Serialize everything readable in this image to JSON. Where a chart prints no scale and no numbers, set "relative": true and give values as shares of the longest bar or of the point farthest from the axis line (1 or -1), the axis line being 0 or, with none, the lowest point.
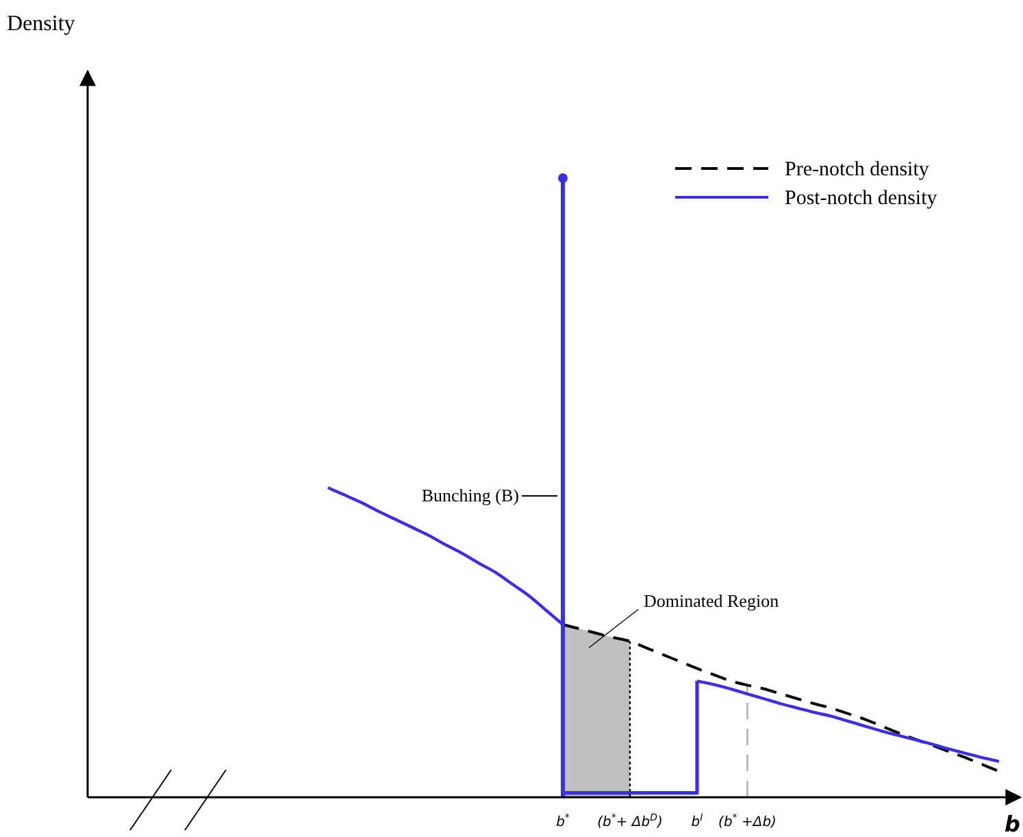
{
  "chart_data": {
    "type": "line",
    "relative": true,
    "xlabel": "b",
    "categories": [
      null,
      null,
      null,
      null,
      null,
      null,
      null,
      null,
      null,
      null,
      null,
      null,
      null,
      null,
      null,
      null,
      null,
      null,
      null,
      null,
      null,
      null,
      null,
      null,
      null,
      null,
      null,
      null,
      "b$^{*}$",
      null,
      null,
      null,
      "(b$^{*}$+ Δb$^{D}$)",
      null,
      null,
      null,
      "b$^{I}$",
      null,
      null,
      "(b$^{*}$ +Δb)",
      null,
      null,
      null,
      null,
      null,
      null,
      null,
      null,
      null,
      null,
      null,
      null,
      null,
      null,
      null
    ],
    "legend": "top right",
    "series": [
      {
        "name": "Pre-notch density",
        "color": "#000000",
        "line_style": "dashed",
        "values": [
          null,
          null,
          null,
          null,
          null,
          null,
          null,
          null,
          null,
          null,
          null,
          null,
          null,
          null,
          null,
          null,
          null,
          null,
          null,
          null,
          null,
          null,
          null,
          null,
          null,
          null,
          null,
          null,
          0.279,
          0.272,
          0.265,
          0.258,
          0.252,
          0.241,
          0.23,
          0.219,
          0.208,
          0.198,
          0.188,
          0.181,
          0.175,
          0.167,
          0.159,
          0.151,
          0.144,
          0.135,
          0.126,
          0.115,
          0.104,
          0.094,
          0.084,
          0.074,
          0.064,
          0.053,
          0.042
        ]
      },
      {
        "name": "Post-notch density",
        "color": "#3a2ee8",
        "line_style": "solid",
        "values": [
          null,
          null,
          null,
          null,
          null,
          null,
          null,
          null,
          null,
          null,
          null,
          null,
          null,
          null,
          0.5,
          0.488,
          0.476,
          0.462,
          0.449,
          0.436,
          0.423,
          0.408,
          0.394,
          0.378,
          0.363,
          0.344,
          0.325,
          0.302,
          0.279,
          null,
          null,
          null,
          null,
          null,
          null,
          null,
          0.188,
          0.182,
          0.175,
          0.167,
          0.159,
          0.151,
          0.144,
          0.137,
          0.131,
          0.123,
          0.115,
          0.107,
          0.1,
          0.093,
          0.086,
          0.078,
          0.071,
          0.064,
          0.058
        ]
      },
      {
        "type": "step",
        "color": "#3a2ee8",
        "values": [
          null,
          null,
          null,
          null,
          null,
          null,
          null,
          null,
          null,
          null,
          null,
          null,
          null,
          null,
          null,
          null,
          null,
          null,
          null,
          null,
          null,
          null,
          null,
          null,
          null,
          null,
          null,
          null,
          0.007,
          0.007,
          0.007,
          0.007,
          0.007,
          0.007,
          0.007,
          0.007,
          0.188,
          null,
          null,
          null,
          null,
          null,
          null,
          null,
          null,
          null,
          null,
          null,
          null,
          null,
          null,
          null,
          null,
          null,
          null
        ]
      },
      {
        "type": "lollipop",
        "color": "#3a2ee8",
        "values": [
          null,
          null,
          null,
          null,
          null,
          null,
          null,
          null,
          null,
          null,
          null,
          null,
          null,
          null,
          null,
          null,
          null,
          null,
          null,
          null,
          null,
          null,
          null,
          null,
          null,
          null,
          null,
          null,
          1,
          null,
          null,
          null,
          null,
          null,
          null,
          null,
          null,
          null,
          null,
          null,
          null,
          null,
          null,
          null,
          null,
          null,
          null,
          null,
          null,
          null,
          null,
          null,
          null,
          null,
          null
        ]
      }
    ],
    "bands": [
      {
        "axis": "x",
        "from": "b$^{*}$",
        "to": "(b$^{*}$+ Δb$^{D}$)",
        "label": "Dominated Region",
        "color": "#bfbfbf"
      }
    ],
    "ref_lines": [
      {
        "axis": "x",
        "value": "(b$^{*}$+ Δb$^{D}$)",
        "color": "#000000",
        "line_style": "dotted"
      },
      {
        "axis": "x",
        "value": "(b$^{*}$ +Δb)",
        "color": "#aaaaaa",
        "line_style": "dashed"
      }
    ],
    "annotations": [
      "Density",
      "Bunching (B)"
    ]
  }
}
